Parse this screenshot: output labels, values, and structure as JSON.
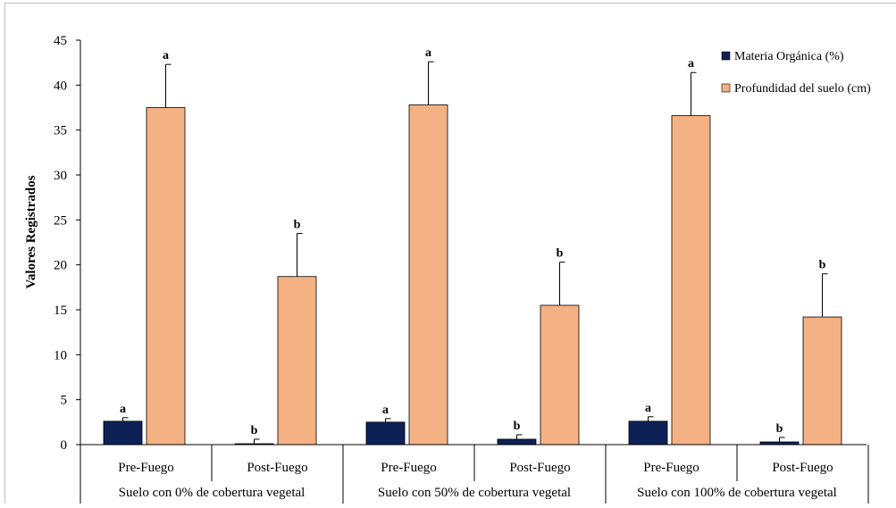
{
  "chart_data": {
    "type": "bar",
    "ylabel": "Valores Registrados",
    "ylim": [
      0,
      45
    ],
    "yticks": [
      0,
      5,
      10,
      15,
      20,
      25,
      30,
      35,
      40,
      45
    ],
    "grid": false,
    "legend_position": "top-right",
    "groups": [
      {
        "label": "Suelo con 0% de cobertura vegetal",
        "categories": [
          {
            "label": "Pre-Fuego",
            "bars": [
              {
                "series": 0,
                "value": 2.6,
                "error": 0.4,
                "letter": "a"
              },
              {
                "series": 1,
                "value": 37.5,
                "error": 4.8,
                "letter": "a"
              }
            ]
          },
          {
            "label": "Post-Fuego",
            "bars": [
              {
                "series": 0,
                "value": 0.1,
                "error": 0.5,
                "letter": "b"
              },
              {
                "series": 1,
                "value": 18.7,
                "error": 4.8,
                "letter": "b"
              }
            ]
          }
        ]
      },
      {
        "label": "Suelo con 50% de cobertura vegetal",
        "categories": [
          {
            "label": "Pre-Fuego",
            "bars": [
              {
                "series": 0,
                "value": 2.5,
                "error": 0.4,
                "letter": "a"
              },
              {
                "series": 1,
                "value": 37.8,
                "error": 4.8,
                "letter": "a"
              }
            ]
          },
          {
            "label": "Post-Fuego",
            "bars": [
              {
                "series": 0,
                "value": 0.6,
                "error": 0.5,
                "letter": "b"
              },
              {
                "series": 1,
                "value": 15.5,
                "error": 4.8,
                "letter": "b"
              }
            ]
          }
        ]
      },
      {
        "label": "Suelo con 100% de cobertura vegetal",
        "categories": [
          {
            "label": "Pre-Fuego",
            "bars": [
              {
                "series": 0,
                "value": 2.6,
                "error": 0.5,
                "letter": "a"
              },
              {
                "series": 1,
                "value": 36.6,
                "error": 4.8,
                "letter": "a"
              }
            ]
          },
          {
            "label": "Post-Fuego",
            "bars": [
              {
                "series": 0,
                "value": 0.3,
                "error": 0.5,
                "letter": "b"
              },
              {
                "series": 1,
                "value": 14.2,
                "error": 4.8,
                "letter": "b"
              }
            ]
          }
        ]
      }
    ],
    "series": [
      {
        "name": "Materia Orgánica (%)",
        "color": "#0d2157"
      },
      {
        "name": "Profundidad del suelo (cm)",
        "color": "#f4b183"
      }
    ]
  }
}
